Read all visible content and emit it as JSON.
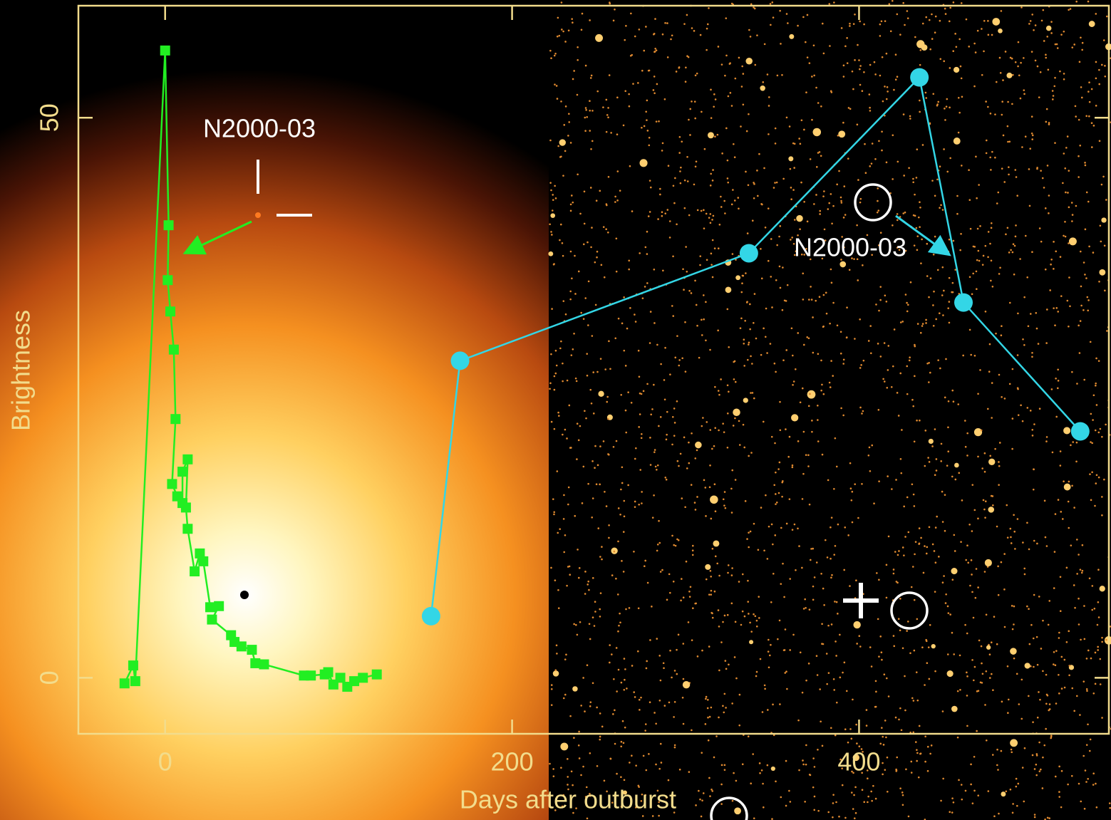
{
  "chart_data": {
    "type": "line",
    "x_label": "Days after outburst",
    "y_label": "Brightness",
    "annotations": [
      "N2000-03",
      "N2000-03"
    ],
    "xlim": [
      -50,
      544
    ],
    "ylim": [
      -5,
      60
    ],
    "xticks": [
      0,
      200,
      400
    ],
    "yticks": [
      0,
      50
    ],
    "series": [
      {
        "color": "#22ee22",
        "marker": "square",
        "x": [
          -23.4,
          -18.4,
          -17.2,
          0,
          2,
          1.5,
          3,
          5,
          6,
          4,
          7,
          10,
          10,
          13,
          12,
          13,
          17,
          20,
          22,
          26,
          31,
          27,
          38,
          40,
          44,
          50,
          52,
          57,
          80,
          84,
          92,
          94,
          97,
          101,
          105,
          109,
          114,
          122
        ],
        "values": [
          -0.5,
          1.1,
          -0.3,
          56.0,
          40.4,
          35.5,
          32.7,
          29.3,
          23.1,
          17.3,
          16.2,
          15.6,
          18.4,
          19.5,
          15.2,
          13.3,
          9.5,
          11.1,
          10.4,
          6.3,
          6.4,
          5.2,
          3.8,
          3.2,
          2.8,
          2.5,
          1.3,
          1.2,
          0.2,
          0.2,
          0.3,
          0.5,
          -0.6,
          0.0,
          -0.8,
          -0.3,
          0.0,
          0.3
        ]
      },
      {
        "color": "#33d6e6",
        "marker": "circle",
        "x": [
          153.3,
          170,
          336.5,
          434.8,
          460.2,
          527.5
        ],
        "values": [
          5.5,
          28.3,
          37.9,
          53.6,
          33.5,
          22.0
        ]
      }
    ]
  }
}
